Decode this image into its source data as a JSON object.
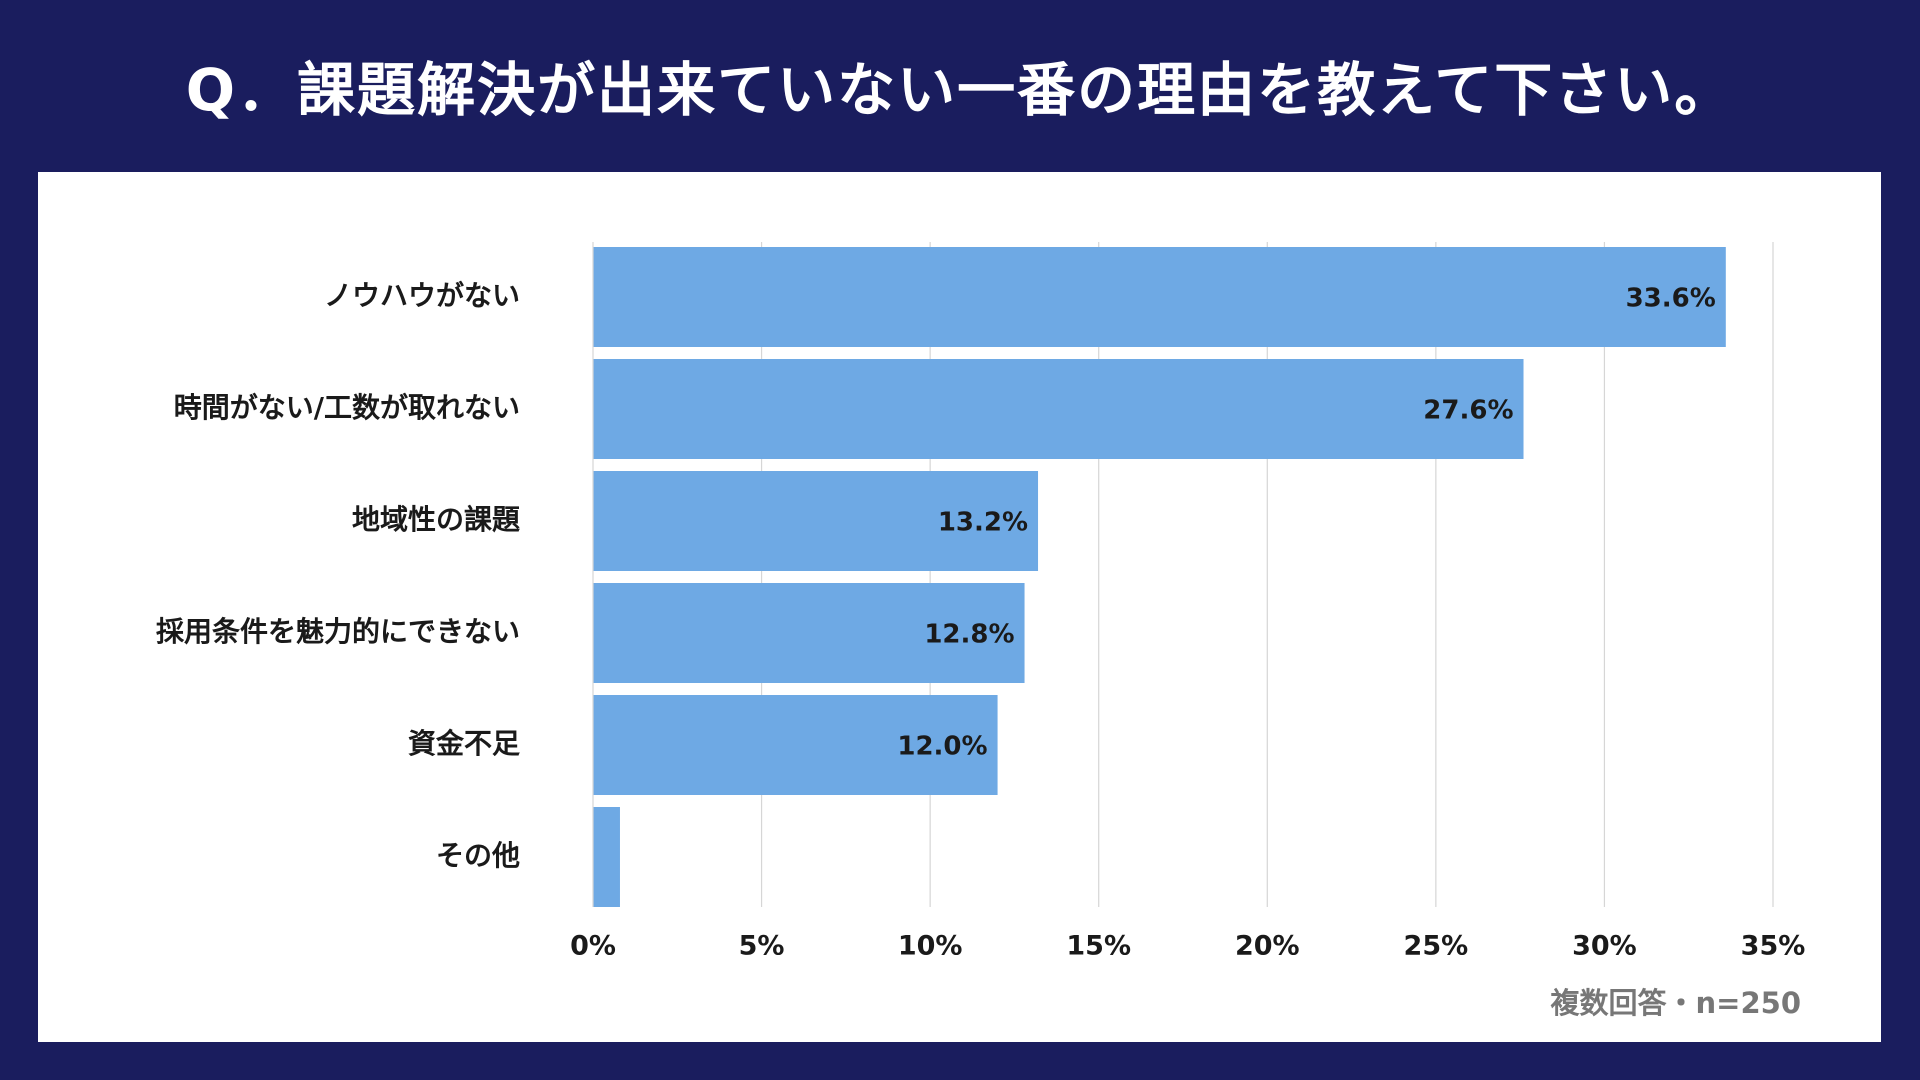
{
  "title": "Q．課題解決が出来ていない一番の理由を教えて下さい。",
  "note": "複数回答・n=250",
  "colors": {
    "background": "#1a1d5e",
    "panel": "#ffffff",
    "bar": "#6ea9e4",
    "grid": "#d6d6d6"
  },
  "chart_data": {
    "type": "bar",
    "orientation": "horizontal",
    "categories": [
      "ノウハウがない",
      "時間がない/工数が取れない",
      "地域性の課題",
      "採用条件を魅力的にできない",
      "資金不足",
      "その他"
    ],
    "values": [
      33.6,
      27.6,
      13.2,
      12.8,
      12.0,
      0.8
    ],
    "data_labels": [
      "33.6%",
      "27.6%",
      "13.2%",
      "12.8%",
      "12.0%",
      ""
    ],
    "xlim": [
      0,
      35
    ],
    "x_ticks": [
      0,
      5,
      10,
      15,
      20,
      25,
      30,
      35
    ],
    "x_tick_labels": [
      "0%",
      "5%",
      "10%",
      "15%",
      "20%",
      "25%",
      "30%",
      "35%"
    ],
    "grid": true
  }
}
